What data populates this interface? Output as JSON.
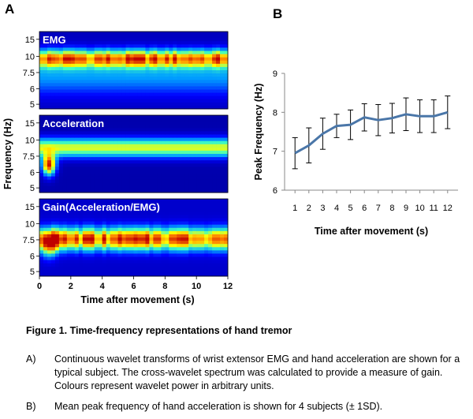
{
  "panels": {
    "a_label": "A",
    "b_label": "B"
  },
  "chart_data": [
    {
      "type": "heatmap",
      "panel": "A",
      "ylabel": "Frequency (Hz)",
      "xlabel": "Time after movement (s)",
      "xlim": [
        0,
        12
      ],
      "xticks": [
        "0",
        "2",
        "4",
        "6",
        "8",
        "10",
        "12"
      ],
      "yticks": [
        "15",
        "10",
        "7.5",
        "6",
        "5"
      ],
      "colormap": [
        "#00007f",
        "#0000ff",
        "#00a0ff",
        "#40ffbf",
        "#ffff00",
        "#ff8000",
        "#c00000"
      ],
      "subplots": [
        {
          "title": "EMG"
        },
        {
          "title": "Acceleration"
        },
        {
          "title": "Gain(Acceleration/EMG)"
        }
      ]
    },
    {
      "type": "line",
      "panel": "B",
      "xlabel": "Time after movement (s)",
      "ylabel": "Peak Frequency (Hz)",
      "ylim": [
        6,
        9
      ],
      "yticks": [
        "6",
        "7",
        "8",
        "9"
      ],
      "x": [
        "1",
        "2",
        "3",
        "4",
        "5",
        "6",
        "7",
        "8",
        "9",
        "10",
        "11",
        "12"
      ],
      "series": [
        {
          "values": [
            6.95,
            7.15,
            7.45,
            7.65,
            7.68,
            7.87,
            7.8,
            7.85,
            7.95,
            7.9,
            7.9,
            8.0
          ],
          "error": [
            0.4,
            0.45,
            0.4,
            0.3,
            0.38,
            0.35,
            0.4,
            0.38,
            0.42,
            0.42,
            0.42,
            0.42
          ],
          "color": "#4a76a8"
        }
      ]
    }
  ],
  "caption": {
    "title": "Figure 1. Time-frequency representations of hand tremor",
    "items": [
      {
        "tag": "A)",
        "text": "Continuous wavelet transforms of wrist extensor EMG and hand acceleration are shown for a typical subject.  The cross-wavelet spectrum was calculated to provide a measure of gain. Colours represent wavelet power in arbitrary units."
      },
      {
        "tag": "B)",
        "text": "Mean  peak frequency of hand acceleration is shown for 4 subjects (± 1SD)."
      }
    ]
  }
}
